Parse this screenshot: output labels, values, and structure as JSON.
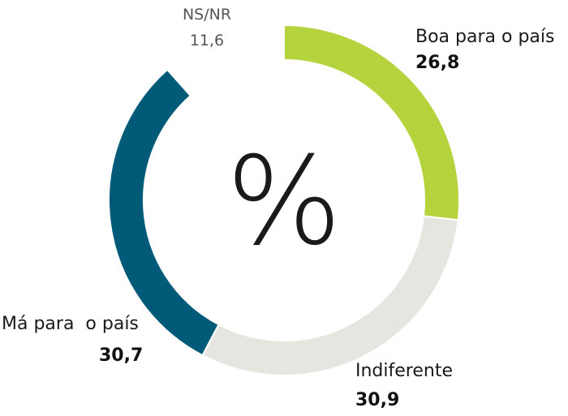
{
  "chart_data": {
    "type": "pie",
    "center_label": "%",
    "slices": [
      {
        "label": "Boa para o país",
        "value": 26.8,
        "value_text": "26,8",
        "color": "#b5d33d"
      },
      {
        "label": "Indiferente",
        "value": 30.9,
        "value_text": "30,9",
        "color": "#e6e6e1"
      },
      {
        "label": "Má para  o país",
        "value": 30.7,
        "value_text": "30,7",
        "color": "#015b78"
      },
      {
        "label": "NS/NR",
        "value": 11.6,
        "value_text": "11,6",
        "color": "#ffffff"
      }
    ]
  }
}
